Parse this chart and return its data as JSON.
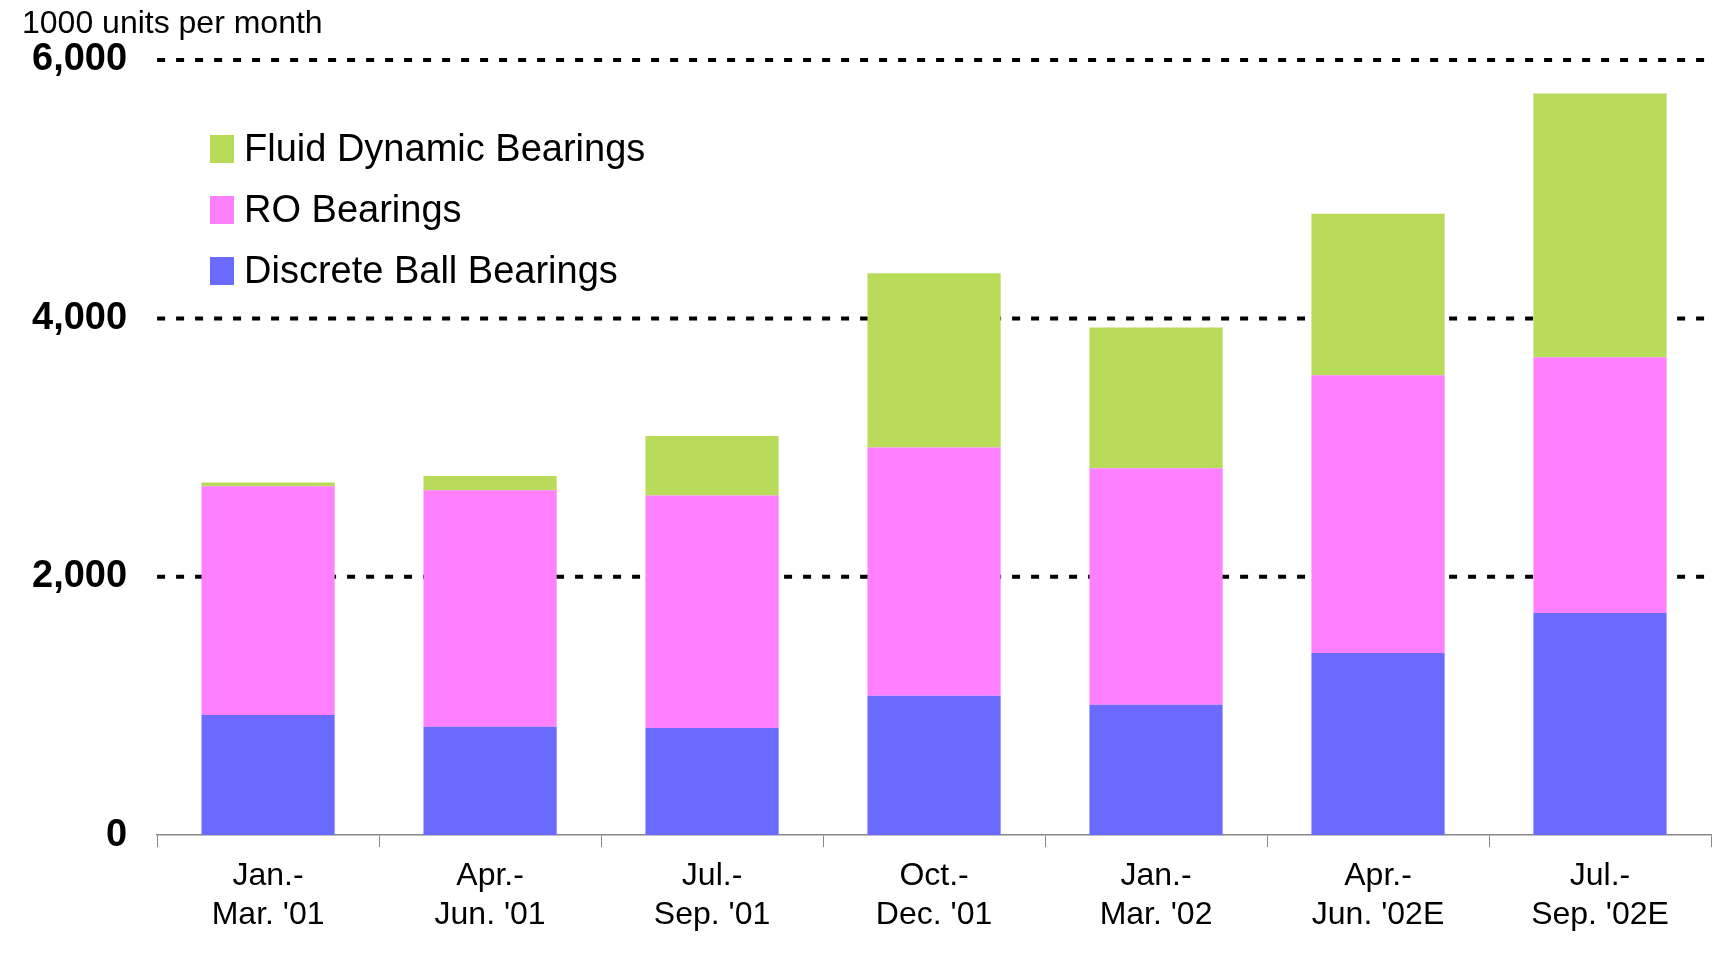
{
  "chart_data": {
    "type": "bar",
    "stacked": true,
    "ylabel": "1000 units per month",
    "categories": [
      "Jan.-\nMar. '01",
      "Apr.-\nJun. '01",
      "Jul.-\nSep. '01",
      "Oct.-\nDec. '01",
      "Jan.-\nMar. '02",
      "Apr.-\nJun. '02E",
      "Jul.-\nSep. '02E"
    ],
    "series": [
      {
        "name": "Discrete Ball Bearings",
        "color": "#6a6aff",
        "values": [
          930,
          840,
          830,
          1080,
          1010,
          1410,
          1720
        ]
      },
      {
        "name": "RO Bearings",
        "color": "#ff80ff",
        "values": [
          1770,
          1830,
          1800,
          1920,
          1830,
          2150,
          1980
        ]
      },
      {
        "name": "Fluid Dynamic Bearings",
        "color": "#b8dc5a",
        "values": [
          30,
          110,
          460,
          1350,
          1090,
          1250,
          2040
        ]
      }
    ],
    "ylim": [
      0,
      6000
    ],
    "yticks": [
      0,
      {
        "value": 2000,
        "label": "2,000"
      },
      {
        "value": 4000,
        "label": "4,000"
      },
      {
        "value": 6000,
        "label": "6,000"
      }
    ],
    "grid": "y",
    "legend": "top left"
  }
}
